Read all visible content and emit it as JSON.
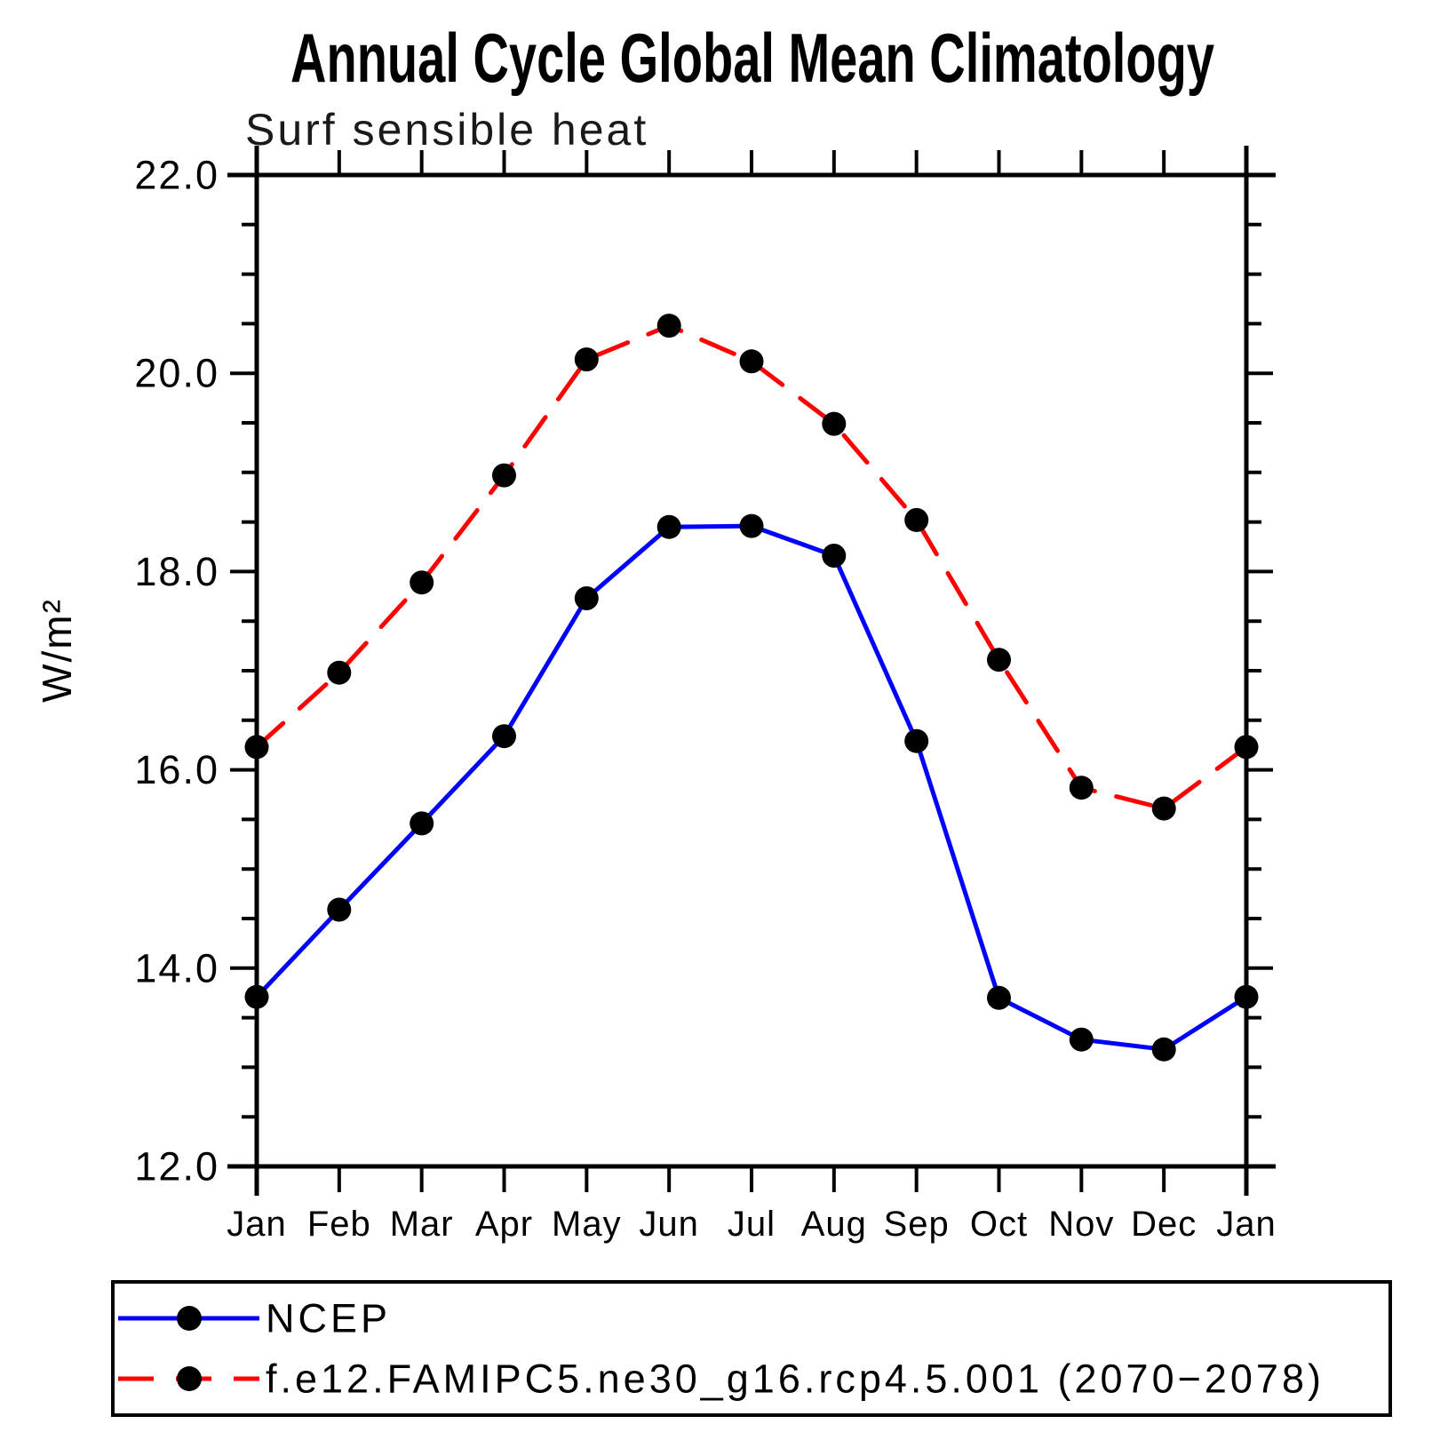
{
  "title": "Annual Cycle Global Mean Climatology",
  "subtitle": "Surf sensible heat",
  "y_axis_label": "W/m²",
  "legend": {
    "position": "bottom",
    "entries": [
      {
        "label": "NCEP",
        "color": "#0000ff",
        "line_style": "solid",
        "marker": "filled-circle"
      },
      {
        "label": "f.e12.FAMIPC5.ne30_g16.rcp4.5.001 (2070−2078)",
        "color": "#ff0000",
        "line_style": "dashed",
        "marker": "filled-circle"
      }
    ]
  },
  "chart_data": {
    "type": "line",
    "x_tick_labels": [
      "Jan",
      "Feb",
      "Mar",
      "Apr",
      "May",
      "Jun",
      "Jul",
      "Aug",
      "Sep",
      "Oct",
      "Nov",
      "Dec",
      "Jan"
    ],
    "series": [
      {
        "name": "NCEP",
        "color": "#0000ff",
        "line_style": "solid",
        "marker_color": "#000000",
        "values": [
          13.71,
          14.59,
          15.46,
          16.34,
          17.73,
          18.45,
          18.46,
          18.16,
          16.29,
          13.7,
          13.28,
          13.18,
          13.71
        ]
      },
      {
        "name": "f.e12.FAMIPC5.ne30_g16.rcp4.5.001 (2070−2078)",
        "color": "#ff0000",
        "line_style": "dashed",
        "marker_color": "#000000",
        "values": [
          16.23,
          16.98,
          17.89,
          18.97,
          20.14,
          20.48,
          20.12,
          19.49,
          18.52,
          17.11,
          15.82,
          15.61,
          16.23
        ]
      }
    ],
    "ylim": [
      12.0,
      22.0
    ],
    "y_major_tick_step": 2.0,
    "y_minor_tick_step": 0.5,
    "y_major_tick_labels": [
      "12.0",
      "14.0",
      "16.0",
      "18.0",
      "20.0",
      "22.0"
    ],
    "xlabel": "",
    "ylabel": "W/m²",
    "grid": false,
    "legend_position": "bottom"
  }
}
